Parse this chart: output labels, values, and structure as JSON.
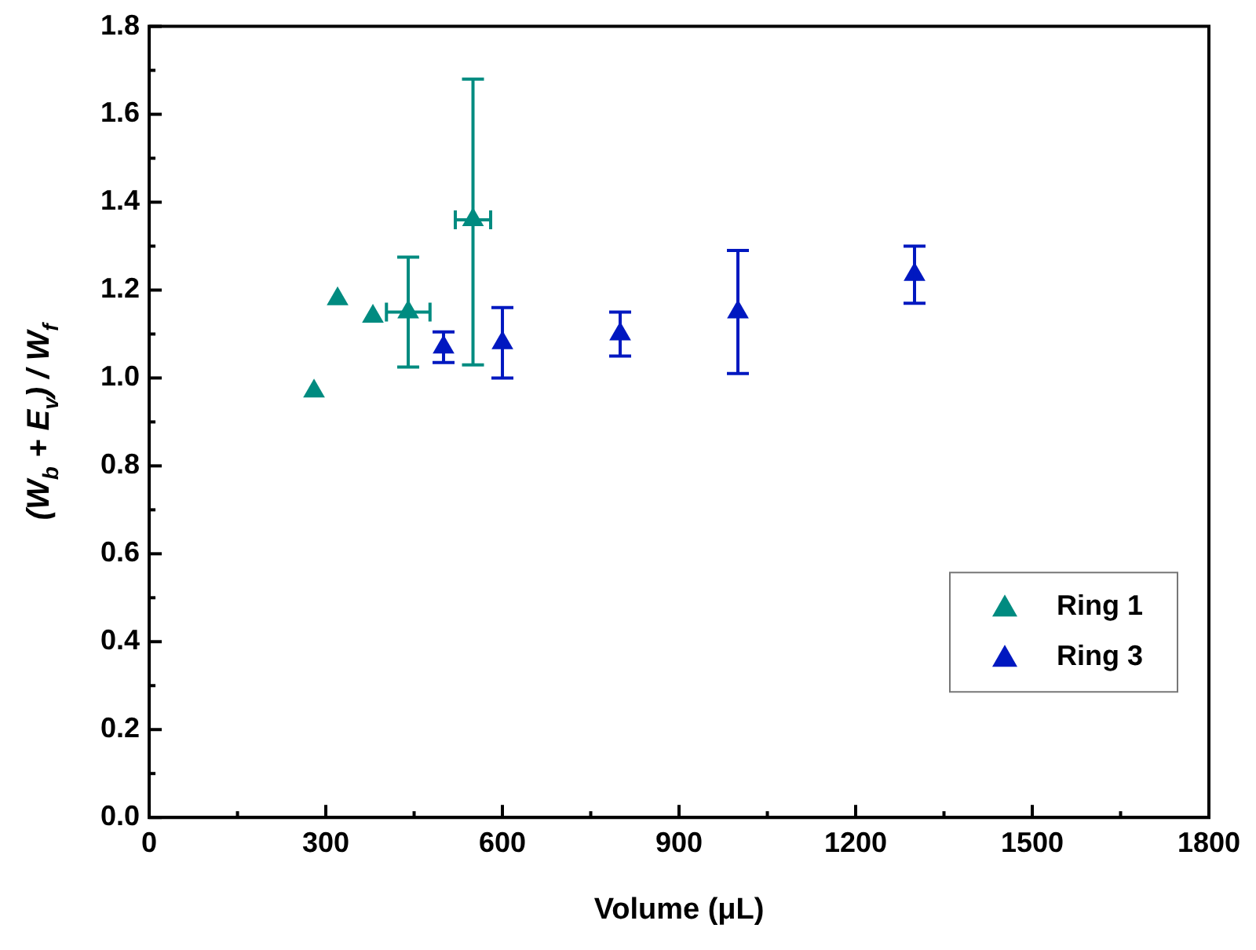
{
  "chart_data": {
    "type": "scatter",
    "xlabel": "Volume (μL)",
    "ylabel": "(W$_{b}$ + E$_{v}$) / W$_{f}$",
    "xlim": [
      0,
      1800
    ],
    "xticks": [
      0,
      300,
      600,
      900,
      1200,
      1500,
      1800
    ],
    "ylim": [
      0,
      1.8
    ],
    "yticks": [
      {
        "value": 0,
        "label": "0.0"
      },
      0.2,
      0.4,
      0.6,
      0.8,
      {
        "value": 1,
        "label": "1.0"
      },
      1.2,
      1.4,
      1.6,
      1.8
    ],
    "marker": "triangle",
    "grid": false,
    "legend": "bottom right",
    "series": [
      {
        "name": "Ring 1",
        "color": "#008b80",
        "x": [
          280,
          320,
          380,
          440,
          550
        ],
        "values": [
          0.97,
          1.18,
          1.14,
          1.15,
          1.36
        ],
        "errors": [
          null,
          null,
          null,
          0.125,
          [
            1.03,
            1.68
          ]
        ],
        "xerrors": [
          null,
          null,
          null,
          37,
          30
        ]
      },
      {
        "name": "Ring 3",
        "color": "#0018c0",
        "x": [
          500,
          600,
          800,
          1000,
          1300
        ],
        "values": [
          1.07,
          1.08,
          1.1,
          1.15,
          1.235
        ],
        "errors": [
          0.035,
          0.08,
          0.05,
          0.14,
          0.065
        ]
      }
    ]
  }
}
